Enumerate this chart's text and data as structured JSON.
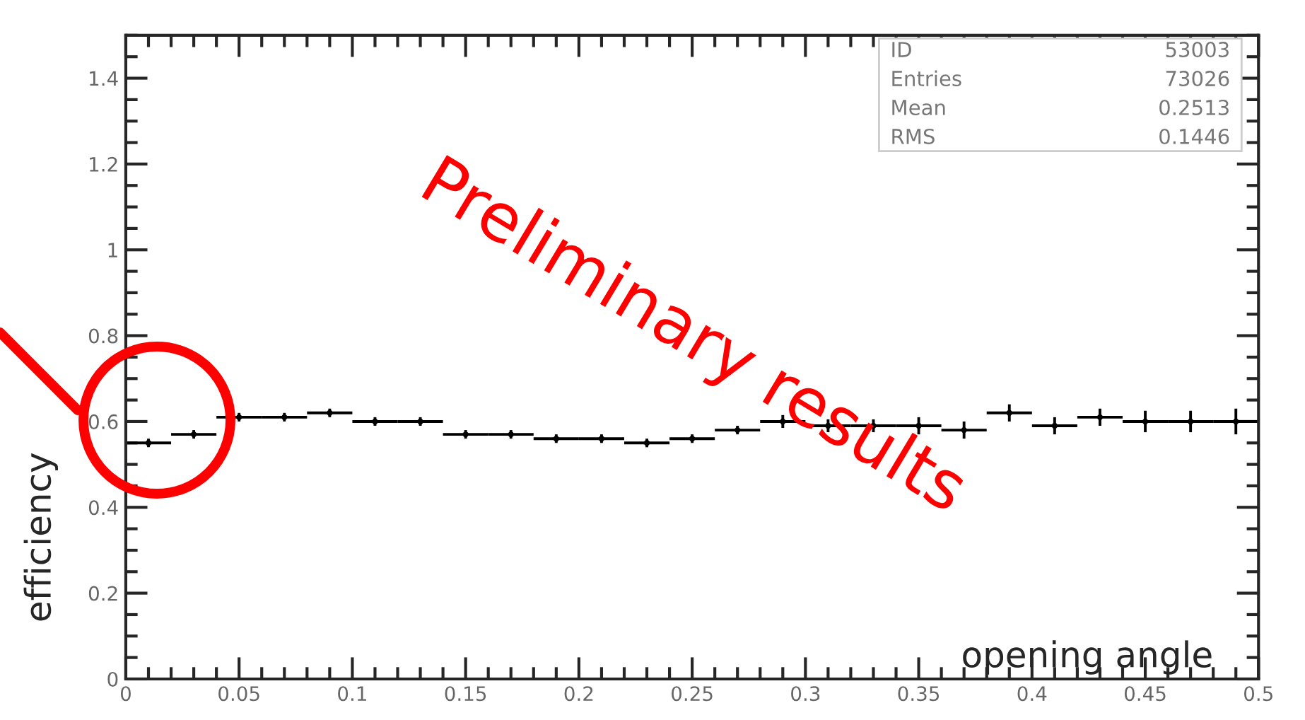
{
  "chart_data": {
    "type": "scatter",
    "xlabel": "opening angle",
    "ylabel": "efficiency",
    "x": [
      0.01,
      0.03,
      0.05,
      0.07,
      0.09,
      0.11,
      0.13,
      0.15,
      0.17,
      0.19,
      0.21,
      0.23,
      0.25,
      0.27,
      0.29,
      0.31,
      0.33,
      0.35,
      0.37,
      0.39,
      0.41,
      0.43,
      0.45,
      0.47,
      0.49
    ],
    "series": [
      {
        "color": "#000000",
        "values": [
          0.55,
          0.57,
          0.61,
          0.61,
          0.62,
          0.6,
          0.6,
          0.57,
          0.57,
          0.56,
          0.56,
          0.55,
          0.56,
          0.58,
          0.6,
          0.59,
          0.59,
          0.59,
          0.58,
          0.62,
          0.59,
          0.61,
          0.6,
          0.6,
          0.6
        ],
        "errors": [
          0.01,
          0.01,
          0.01,
          0.01,
          0.01,
          0.01,
          0.01,
          0.01,
          0.01,
          0.01,
          0.01,
          0.01,
          0.01,
          0.01,
          0.015,
          0.015,
          0.015,
          0.02,
          0.02,
          0.02,
          0.02,
          0.02,
          0.025,
          0.025,
          0.03
        ],
        "xerrors": [
          0.01,
          0.01,
          0.01,
          0.01,
          0.01,
          0.01,
          0.01,
          0.01,
          0.01,
          0.01,
          0.01,
          0.01,
          0.01,
          0.01,
          0.01,
          0.01,
          0.01,
          0.01,
          0.01,
          0.01,
          0.01,
          0.01,
          0.01,
          0.01,
          0.01
        ]
      }
    ],
    "xlim": [
      0,
      0.5
    ],
    "ylim": [
      0,
      1.5
    ],
    "xticks": [
      0,
      0.05,
      0.1,
      0.15,
      0.2,
      0.25,
      0.3,
      0.35,
      0.4,
      0.45,
      0.5
    ],
    "yticks": [
      0,
      0.2,
      0.4,
      0.6,
      0.8,
      1,
      1.2,
      1.4
    ],
    "annotations": [
      "ID",
      "53003",
      "Entries",
      "73026",
      "Mean",
      "0.2513",
      "RMS",
      "0.1446",
      "Preliminary results"
    ],
    "grid": false,
    "legend": false
  }
}
